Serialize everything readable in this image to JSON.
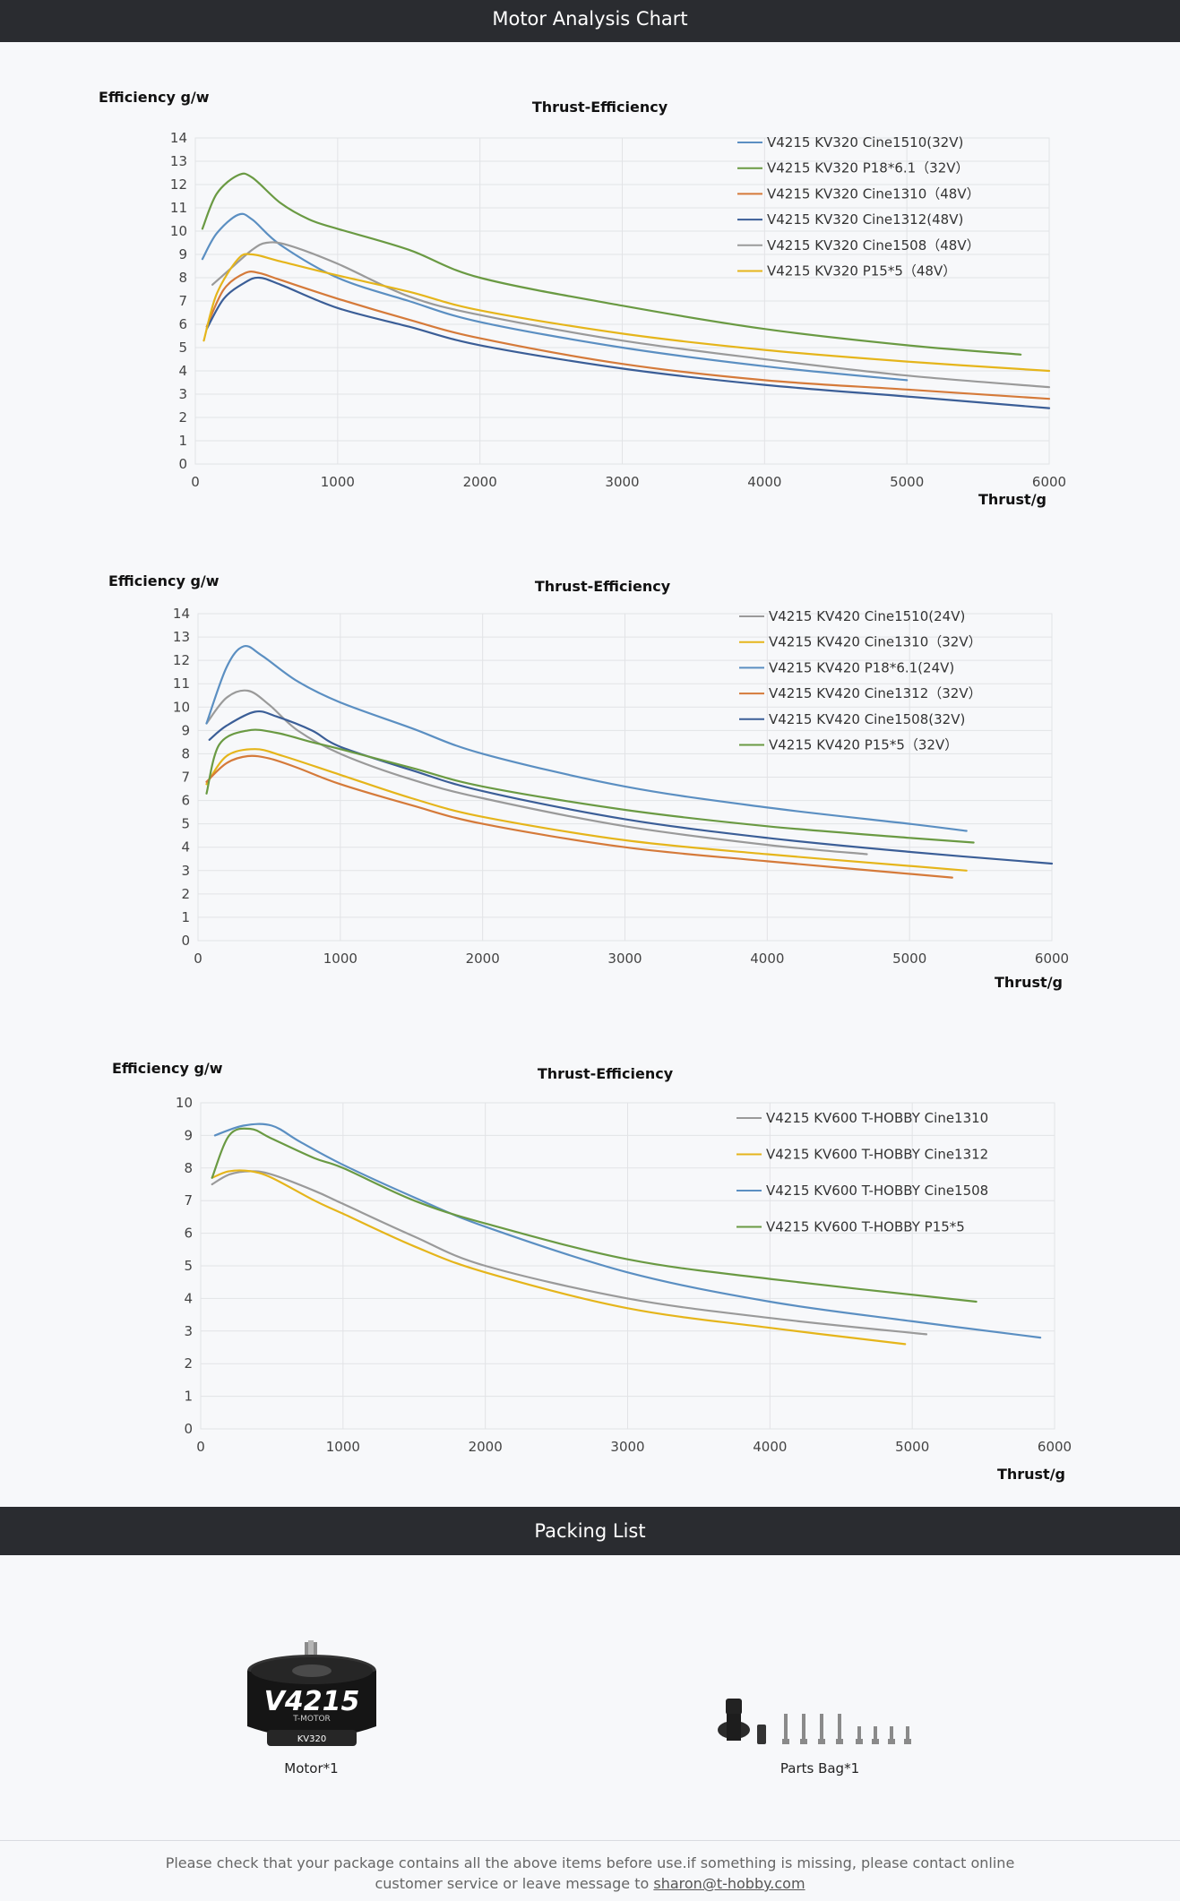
{
  "header": {
    "title": "Motor Analysis Chart"
  },
  "packing": {
    "title": "Packing List",
    "items": [
      {
        "label": "Motor*1",
        "text_model": "V4215",
        "text_brand": "T-MOTOR",
        "text_kv": "KV320"
      },
      {
        "label": "Parts Bag*1"
      }
    ]
  },
  "footer": {
    "line1": "Please check that your package contains all the above items before use.if something is missing, please contact online",
    "line2": "customer service or leave message to ",
    "email": "sharon@t-hobby.com"
  },
  "chart_data": [
    {
      "type": "line",
      "title": "Thrust-Efficiency",
      "ylabel": "Efficiency g/w",
      "xlabel": "Thrust/g",
      "xlim": [
        0,
        6000
      ],
      "ylim": [
        0,
        14
      ],
      "xticks": [
        "0",
        "1000",
        "2000",
        "3000",
        "4000",
        "5000",
        "6000"
      ],
      "yticks": [
        "0",
        "1",
        "2",
        "3",
        "4",
        "5",
        "6",
        "7",
        "8",
        "9",
        "10",
        "11",
        "12",
        "13",
        "14"
      ],
      "grid": true,
      "legend": "top-right",
      "series": [
        {
          "name": "V4215 KV320 Cine1510(32V)",
          "color": "#5b8fc2",
          "x": [
            50,
            150,
            300,
            400,
            600,
            1000,
            1500,
            2000,
            3000,
            4000,
            5000
          ],
          "y": [
            8.8,
            9.9,
            10.7,
            10.5,
            9.4,
            8.0,
            7.0,
            6.1,
            5.0,
            4.2,
            3.6
          ]
        },
        {
          "name": "V4215 KV320 P18*6.1（32V）",
          "color": "#6a9a43",
          "x": [
            50,
            150,
            300,
            400,
            600,
            800,
            1000,
            1500,
            2000,
            3000,
            4000,
            5000,
            5800
          ],
          "y": [
            10.1,
            11.6,
            12.4,
            12.3,
            11.2,
            10.5,
            10.1,
            9.2,
            8.0,
            6.8,
            5.8,
            5.1,
            4.7
          ]
        },
        {
          "name": "V4215 KV320 Cine1310（48V）",
          "color": "#d57a3a",
          "x": [
            80,
            200,
            350,
            450,
            600,
            1000,
            1500,
            2000,
            3000,
            4000,
            5000,
            6000
          ],
          "y": [
            5.9,
            7.5,
            8.2,
            8.2,
            7.9,
            7.1,
            6.2,
            5.4,
            4.3,
            3.6,
            3.2,
            2.8
          ]
        },
        {
          "name": "V4215 KV320 Cine1312(48V)",
          "color": "#3b5e97",
          "x": [
            80,
            200,
            350,
            450,
            600,
            1000,
            1500,
            2000,
            3000,
            4000,
            5000,
            6000
          ],
          "y": [
            5.8,
            7.1,
            7.8,
            8.0,
            7.7,
            6.7,
            5.9,
            5.1,
            4.1,
            3.4,
            2.9,
            2.4
          ]
        },
        {
          "name": "V4215 KV320 Cine1508（48V）",
          "color": "#9a9a9a",
          "x": [
            120,
            250,
            400,
            500,
            650,
            1000,
            1500,
            2000,
            3000,
            4000,
            5000,
            6000
          ],
          "y": [
            7.7,
            8.4,
            9.2,
            9.5,
            9.4,
            8.6,
            7.2,
            6.4,
            5.3,
            4.5,
            3.8,
            3.3
          ]
        },
        {
          "name": "V4215 KV320 P15*5（48V）",
          "color": "#e5b51b",
          "x": [
            60,
            150,
            300,
            400,
            600,
            1000,
            1500,
            2000,
            3000,
            4000,
            5000,
            6000
          ],
          "y": [
            5.3,
            7.3,
            8.8,
            9.0,
            8.7,
            8.1,
            7.4,
            6.6,
            5.6,
            4.9,
            4.4,
            4.0
          ]
        }
      ]
    },
    {
      "type": "line",
      "title": "Thrust-Efficiency",
      "ylabel": "Efficiency g/w",
      "xlabel": "Thrust/g",
      "xlim": [
        0,
        6000
      ],
      "ylim": [
        0,
        14
      ],
      "xticks": [
        "0",
        "1000",
        "2000",
        "3000",
        "4000",
        "5000",
        "6000"
      ],
      "yticks": [
        "0",
        "1",
        "2",
        "3",
        "4",
        "5",
        "6",
        "7",
        "8",
        "9",
        "10",
        "11",
        "12",
        "13",
        "14"
      ],
      "grid": true,
      "legend": "top-right",
      "series": [
        {
          "name": "V4215 KV420 Cine1510(24V)",
          "color": "#9a9a9a",
          "x": [
            60,
            200,
            350,
            500,
            700,
            1000,
            1500,
            2000,
            3000,
            4000,
            4700
          ],
          "y": [
            9.3,
            10.4,
            10.7,
            10.1,
            9.0,
            8.0,
            6.9,
            6.1,
            4.9,
            4.1,
            3.7
          ]
        },
        {
          "name": "V4215 KV420 Cine1310（32V）",
          "color": "#e5b51b",
          "x": [
            60,
            200,
            400,
            600,
            1000,
            1500,
            2000,
            3000,
            4000,
            5000,
            5400
          ],
          "y": [
            6.7,
            7.9,
            8.2,
            7.9,
            7.1,
            6.1,
            5.3,
            4.3,
            3.7,
            3.2,
            3.0
          ]
        },
        {
          "name": "V4215 KV420 P18*6.1(24V)",
          "color": "#5b8fc2",
          "x": [
            60,
            200,
            320,
            450,
            700,
            1000,
            1500,
            2000,
            3000,
            4000,
            5000,
            5400
          ],
          "y": [
            9.3,
            11.7,
            12.6,
            12.2,
            11.1,
            10.2,
            9.1,
            8.0,
            6.6,
            5.7,
            5.0,
            4.7
          ]
        },
        {
          "name": "V4215 KV420 Cine1312（32V）",
          "color": "#d57a3a",
          "x": [
            60,
            200,
            350,
            500,
            700,
            1000,
            1500,
            2000,
            3000,
            4000,
            5300
          ],
          "y": [
            6.8,
            7.6,
            7.9,
            7.8,
            7.4,
            6.7,
            5.8,
            5.0,
            4.0,
            3.4,
            2.7
          ]
        },
        {
          "name": "V4215 KV420 Cine1508(32V)",
          "color": "#3b5e97",
          "x": [
            80,
            200,
            400,
            550,
            800,
            1000,
            1500,
            2000,
            3000,
            4000,
            5000,
            6000
          ],
          "y": [
            8.6,
            9.2,
            9.8,
            9.6,
            9.0,
            8.3,
            7.3,
            6.4,
            5.2,
            4.4,
            3.8,
            3.3
          ]
        },
        {
          "name": "V4215 KV420 P15*5（32V）",
          "color": "#6a9a43",
          "x": [
            60,
            150,
            350,
            550,
            800,
            1000,
            1500,
            2000,
            3000,
            4000,
            5000,
            5450
          ],
          "y": [
            6.3,
            8.4,
            9.0,
            8.9,
            8.5,
            8.2,
            7.4,
            6.6,
            5.6,
            4.9,
            4.4,
            4.2
          ]
        }
      ]
    },
    {
      "type": "line",
      "title": "Thrust-Efficiency",
      "ylabel": "Efficiency g/w",
      "xlabel": "Thrust/g",
      "xlim": [
        0,
        6000
      ],
      "ylim": [
        0,
        10
      ],
      "xticks": [
        "0",
        "1000",
        "2000",
        "3000",
        "4000",
        "5000",
        "6000"
      ],
      "yticks": [
        "0",
        "1",
        "2",
        "3",
        "4",
        "5",
        "6",
        "7",
        "8",
        "9",
        "10"
      ],
      "grid": true,
      "legend": "top-right",
      "series": [
        {
          "name": "V4215 KV600 T-HOBBY Cine1310",
          "color": "#9a9a9a",
          "x": [
            80,
            200,
            350,
            500,
            800,
            1000,
            1500,
            2000,
            3000,
            4000,
            5100
          ],
          "y": [
            7.5,
            7.8,
            7.9,
            7.8,
            7.3,
            6.9,
            5.9,
            5.0,
            4.0,
            3.4,
            2.9
          ]
        },
        {
          "name": "V4215 KV600 T-HOBBY Cine1312",
          "color": "#e5b51b",
          "x": [
            80,
            200,
            350,
            500,
            800,
            1000,
            1500,
            2000,
            3000,
            4000,
            4950
          ],
          "y": [
            7.7,
            7.9,
            7.9,
            7.7,
            7.0,
            6.6,
            5.6,
            4.8,
            3.7,
            3.1,
            2.6
          ]
        },
        {
          "name": "V4215 KV600 T-HOBBY Cine1508",
          "color": "#5b8fc2",
          "x": [
            100,
            300,
            500,
            700,
            1000,
            1500,
            2000,
            3000,
            4000,
            5000,
            5900
          ],
          "y": [
            9.0,
            9.3,
            9.3,
            8.8,
            8.1,
            7.1,
            6.2,
            4.8,
            3.9,
            3.3,
            2.8
          ]
        },
        {
          "name": "V4215 KV600 T-HOBBY P15*5",
          "color": "#6a9a43",
          "x": [
            80,
            200,
            350,
            500,
            800,
            1000,
            1500,
            2000,
            3000,
            4000,
            5450
          ],
          "y": [
            7.7,
            9.0,
            9.2,
            8.9,
            8.3,
            8.0,
            7.0,
            6.3,
            5.2,
            4.6,
            3.9
          ]
        }
      ]
    }
  ]
}
